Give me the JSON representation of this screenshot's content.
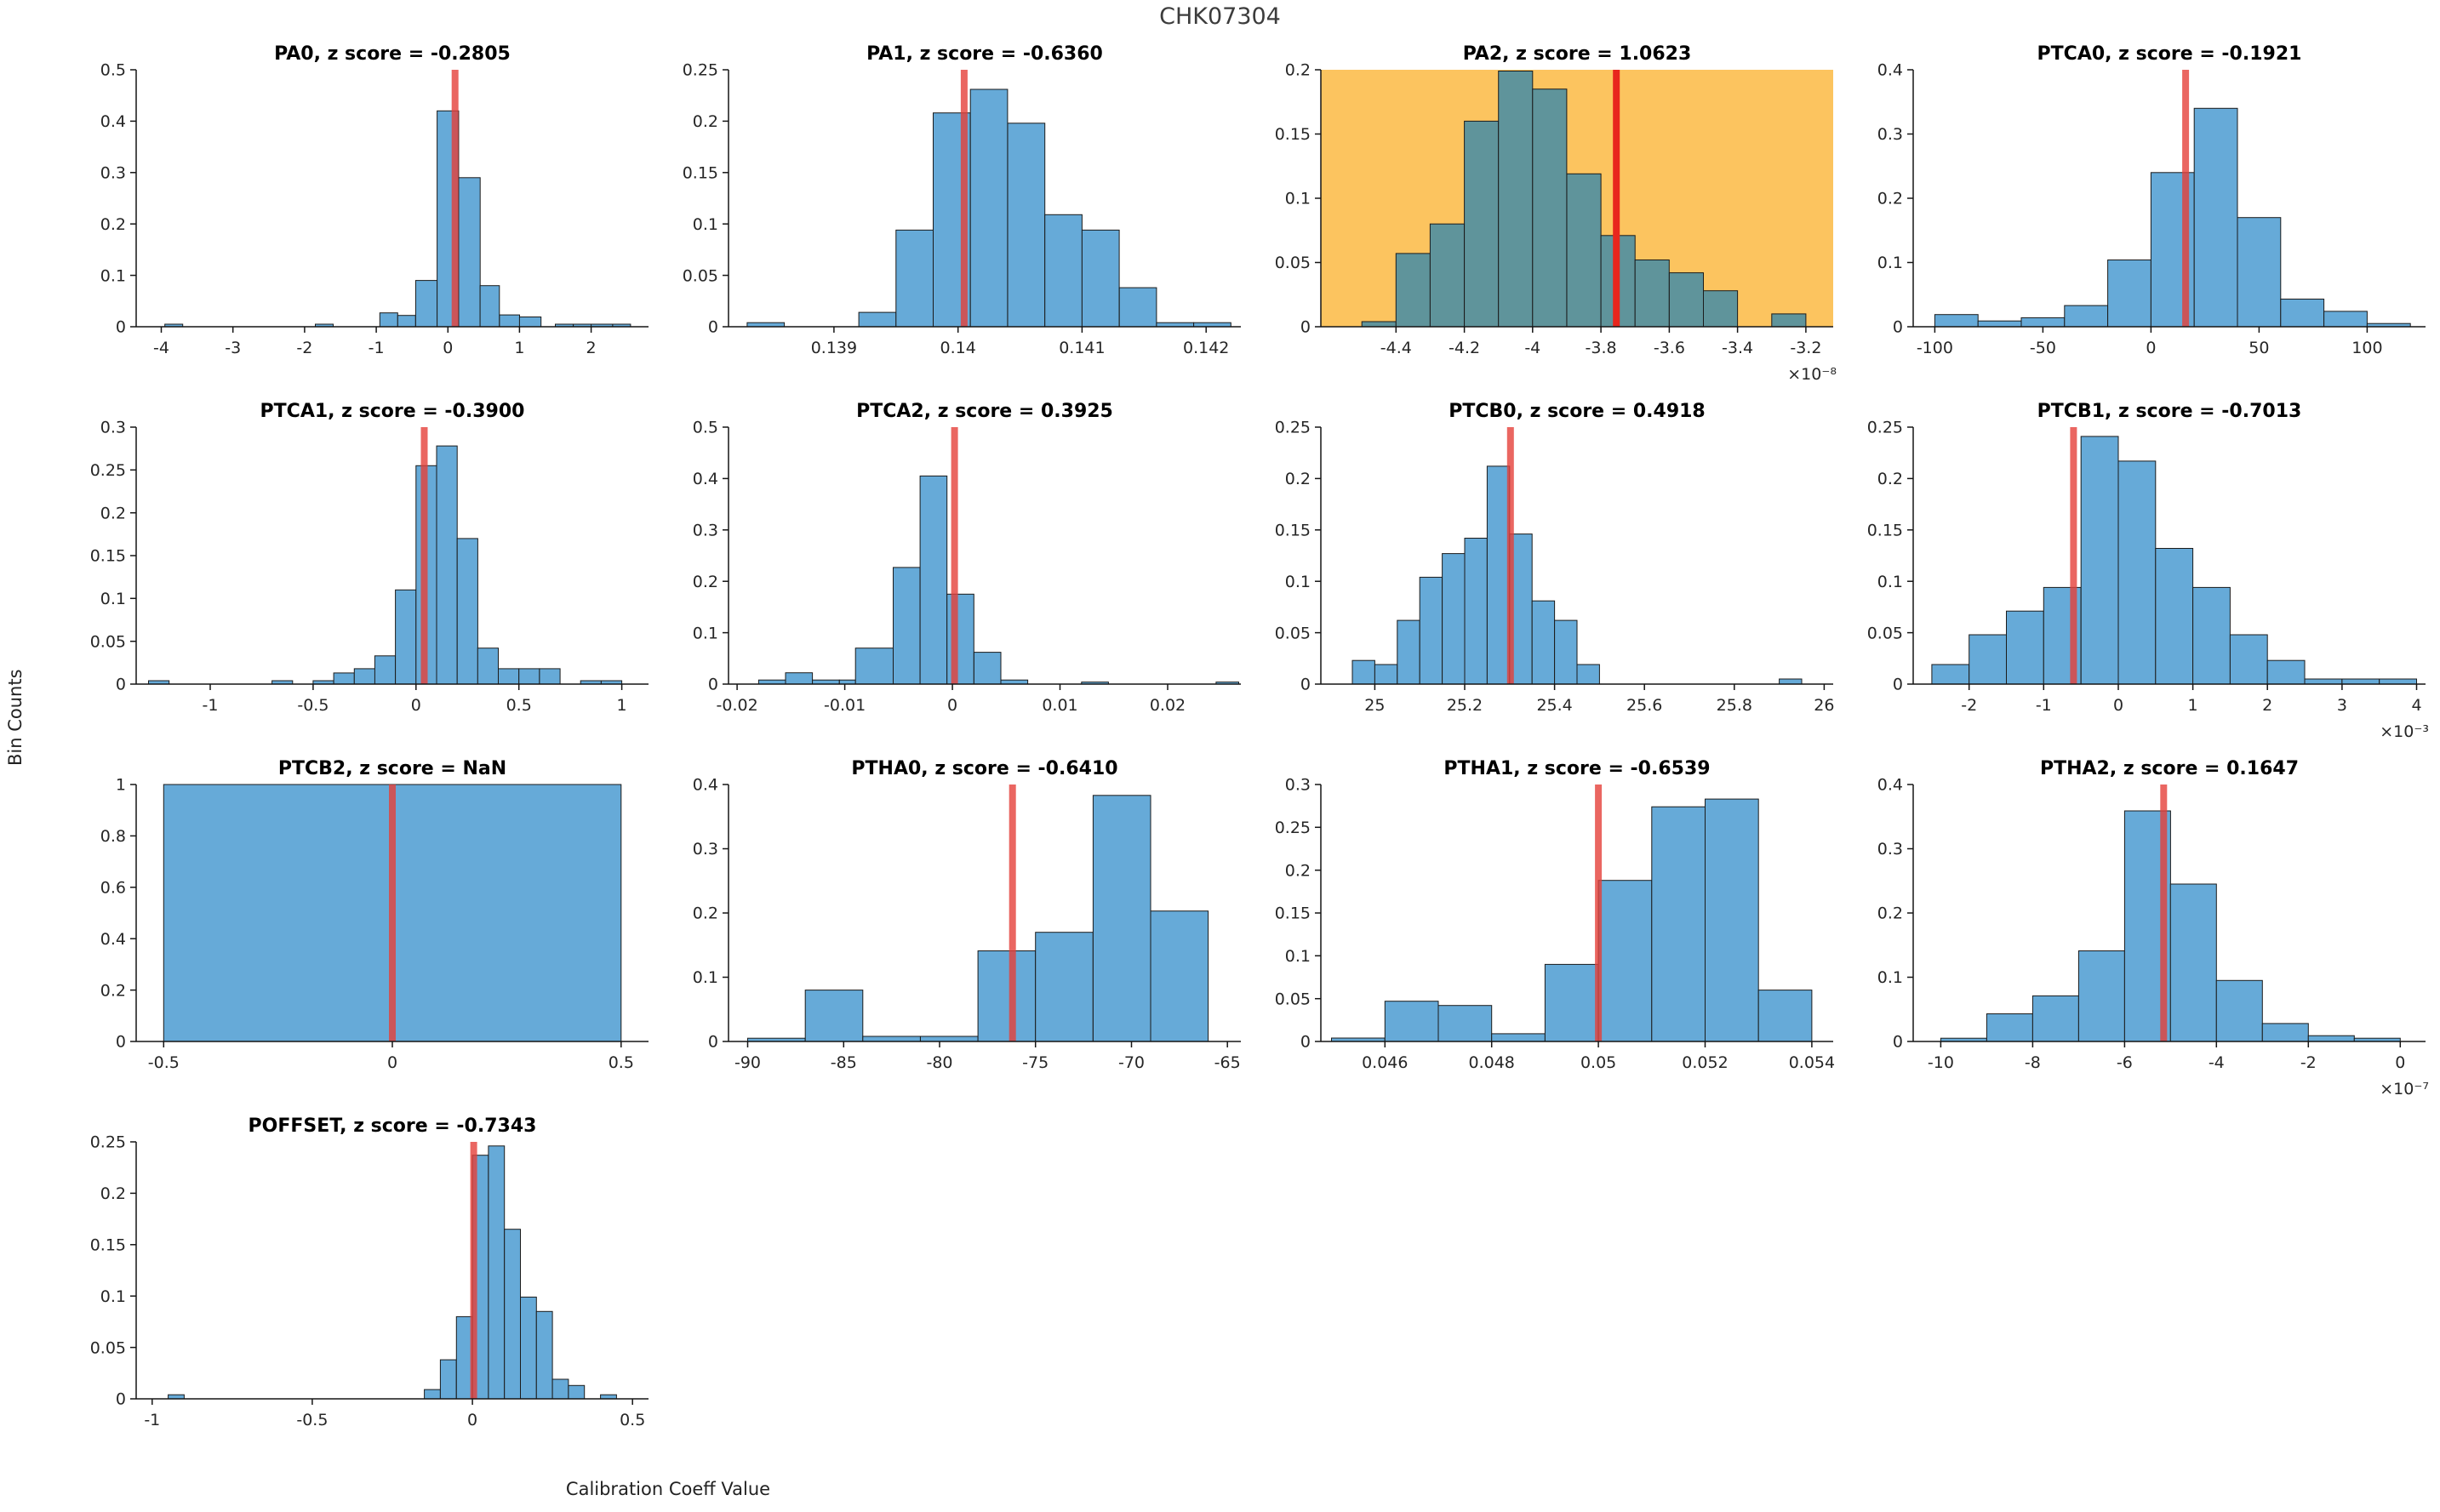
{
  "figure": {
    "title": "CHK07304",
    "xlabel": "Calibration Coeff Value",
    "ylabel": "Bin Counts"
  },
  "colors": {
    "bar_fill": "#66aad8",
    "bar_stroke": "#1b1b1b",
    "bar_fill_highlight": "#5f949b",
    "highlight_bg": "#fcc45f",
    "red_line": "#e5403a",
    "red_line_highlight": "#e8261d",
    "axis": "#151515",
    "tick_label": "#262626",
    "title_text": "#000000"
  },
  "chart_data": [
    {
      "name": "PA0",
      "type": "histogram",
      "title": "PA0, z score = -0.2805",
      "highlighted": false,
      "xlim": [
        -4.35,
        2.8
      ],
      "ylim": [
        0,
        0.5
      ],
      "xticks": [
        -4,
        -3,
        -2,
        -1,
        0,
        1,
        2
      ],
      "yticks": [
        0,
        0.1,
        0.2,
        0.3,
        0.4,
        0.5
      ],
      "x_exponent_label": null,
      "red_line_x": 0.1,
      "bins": [
        [
          -3.95,
          -3.7,
          0.005
        ],
        [
          -1.85,
          -1.6,
          0.005
        ],
        [
          -0.95,
          -0.7,
          0.027
        ],
        [
          -0.7,
          -0.45,
          0.022
        ],
        [
          -0.45,
          -0.15,
          0.09
        ],
        [
          -0.15,
          0.15,
          0.42
        ],
        [
          0.15,
          0.45,
          0.29
        ],
        [
          0.45,
          0.72,
          0.08
        ],
        [
          0.72,
          1.0,
          0.023
        ],
        [
          1.0,
          1.3,
          0.019
        ],
        [
          1.5,
          1.75,
          0.005
        ],
        [
          1.75,
          2.0,
          0.005
        ],
        [
          2.0,
          2.3,
          0.005
        ],
        [
          2.3,
          2.55,
          0.005
        ]
      ]
    },
    {
      "name": "PA1",
      "type": "histogram",
      "title": "PA1, z score = -0.6360",
      "highlighted": false,
      "xlim": [
        0.13815,
        0.14228
      ],
      "ylim": [
        0,
        0.25
      ],
      "xticks": [
        0.139,
        0.14,
        0.141,
        0.142
      ],
      "yticks": [
        0,
        0.05,
        0.1,
        0.15,
        0.2,
        0.25
      ],
      "x_exponent_label": null,
      "red_line_x": 0.14005,
      "bins": [
        [
          0.1383,
          0.1386,
          0.004
        ],
        [
          0.1392,
          0.1395,
          0.014
        ],
        [
          0.1395,
          0.1398,
          0.094
        ],
        [
          0.1398,
          0.1401,
          0.208
        ],
        [
          0.1401,
          0.1404,
          0.231
        ],
        [
          0.1404,
          0.1407,
          0.198
        ],
        [
          0.1407,
          0.141,
          0.109
        ],
        [
          0.141,
          0.1413,
          0.094
        ],
        [
          0.1413,
          0.1416,
          0.038
        ],
        [
          0.1416,
          0.1419,
          0.004
        ],
        [
          0.1419,
          0.1422,
          0.004
        ]
      ]
    },
    {
      "name": "PA2",
      "type": "histogram",
      "title": "PA2, z score = 1.0623",
      "highlighted": true,
      "xlim": [
        -4.62,
        -3.12
      ],
      "ylim": [
        0,
        0.2
      ],
      "xticks": [
        -4.4,
        -4.2,
        -4,
        -3.8,
        -3.6,
        -3.4,
        -3.2
      ],
      "yticks": [
        0,
        0.05,
        0.1,
        0.15,
        0.2
      ],
      "x_exponent_label": "×10⁻⁸",
      "red_line_x": -3.755,
      "bins": [
        [
          -4.5,
          -4.4,
          0.004
        ],
        [
          -4.4,
          -4.3,
          0.057
        ],
        [
          -4.3,
          -4.2,
          0.08
        ],
        [
          -4.2,
          -4.1,
          0.16
        ],
        [
          -4.1,
          -4.0,
          0.199
        ],
        [
          -4.0,
          -3.9,
          0.185
        ],
        [
          -3.9,
          -3.8,
          0.119
        ],
        [
          -3.8,
          -3.7,
          0.071
        ],
        [
          -3.7,
          -3.6,
          0.052
        ],
        [
          -3.6,
          -3.5,
          0.042
        ],
        [
          -3.5,
          -3.4,
          0.028
        ],
        [
          -3.3,
          -3.2,
          0.01
        ]
      ]
    },
    {
      "name": "PTCA0",
      "type": "histogram",
      "title": "PTCA0, z score = -0.1921",
      "highlighted": false,
      "xlim": [
        -110,
        127
      ],
      "ylim": [
        0,
        0.4
      ],
      "xticks": [
        -100,
        -50,
        0,
        50,
        100
      ],
      "yticks": [
        0,
        0.1,
        0.2,
        0.3,
        0.4
      ],
      "x_exponent_label": null,
      "red_line_x": 16,
      "bins": [
        [
          -100,
          -80,
          0.019
        ],
        [
          -80,
          -60,
          0.009
        ],
        [
          -60,
          -40,
          0.014
        ],
        [
          -40,
          -20,
          0.033
        ],
        [
          -20,
          0,
          0.104
        ],
        [
          0,
          20,
          0.24
        ],
        [
          20,
          40,
          0.34
        ],
        [
          40,
          60,
          0.17
        ],
        [
          60,
          80,
          0.043
        ],
        [
          80,
          100,
          0.024
        ],
        [
          100,
          120,
          0.005
        ]
      ]
    },
    {
      "name": "PTCA1",
      "type": "histogram",
      "title": "PTCA1, z score = -0.3900",
      "highlighted": false,
      "xlim": [
        -1.36,
        1.13
      ],
      "ylim": [
        0,
        0.3
      ],
      "xticks": [
        -1,
        -0.5,
        0,
        0.5,
        1
      ],
      "yticks": [
        0,
        0.05,
        0.1,
        0.15,
        0.2,
        0.25,
        0.3
      ],
      "x_exponent_label": null,
      "red_line_x": 0.04,
      "bins": [
        [
          -1.3,
          -1.2,
          0.004
        ],
        [
          -0.7,
          -0.6,
          0.004
        ],
        [
          -0.5,
          -0.4,
          0.004
        ],
        [
          -0.4,
          -0.3,
          0.013
        ],
        [
          -0.3,
          -0.2,
          0.018
        ],
        [
          -0.2,
          -0.1,
          0.033
        ],
        [
          -0.1,
          0,
          0.11
        ],
        [
          0,
          0.1,
          0.255
        ],
        [
          0.1,
          0.2,
          0.278
        ],
        [
          0.2,
          0.3,
          0.17
        ],
        [
          0.3,
          0.4,
          0.042
        ],
        [
          0.4,
          0.5,
          0.018
        ],
        [
          0.5,
          0.6,
          0.018
        ],
        [
          0.6,
          0.7,
          0.018
        ],
        [
          0.8,
          0.9,
          0.004
        ],
        [
          0.9,
          1.0,
          0.004
        ]
      ]
    },
    {
      "name": "PTCA2",
      "type": "histogram",
      "title": "PTCA2, z score = 0.3925",
      "highlighted": false,
      "xlim": [
        -0.0208,
        0.0268
      ],
      "ylim": [
        0,
        0.5
      ],
      "xticks": [
        -0.02,
        -0.01,
        0,
        0.01,
        0.02
      ],
      "yticks": [
        0,
        0.1,
        0.2,
        0.3,
        0.4,
        0.5
      ],
      "x_exponent_label": null,
      "red_line_x": 0.0002,
      "bins": [
        [
          -0.018,
          -0.0155,
          0.008
        ],
        [
          -0.0155,
          -0.013,
          0.022
        ],
        [
          -0.013,
          -0.0105,
          0.008
        ],
        [
          -0.0105,
          -0.009,
          0.008
        ],
        [
          -0.009,
          -0.0055,
          0.07
        ],
        [
          -0.0055,
          -0.003,
          0.227
        ],
        [
          -0.003,
          -0.0005,
          0.405
        ],
        [
          -0.0005,
          0.002,
          0.175
        ],
        [
          0.002,
          0.0045,
          0.062
        ],
        [
          0.0045,
          0.007,
          0.008
        ],
        [
          0.012,
          0.0145,
          0.004
        ],
        [
          0.0245,
          0.0266,
          0.004
        ]
      ]
    },
    {
      "name": "PTCB0",
      "type": "histogram",
      "title": "PTCB0, z score = 0.4918",
      "highlighted": false,
      "xlim": [
        24.88,
        26.02
      ],
      "ylim": [
        0,
        0.25
      ],
      "xticks": [
        25,
        25.2,
        25.4,
        25.6,
        25.8,
        26
      ],
      "yticks": [
        0,
        0.05,
        0.1,
        0.15,
        0.2,
        0.25
      ],
      "x_exponent_label": null,
      "red_line_x": 25.302,
      "bins": [
        [
          24.95,
          25.0,
          0.023
        ],
        [
          25.0,
          25.05,
          0.019
        ],
        [
          25.05,
          25.1,
          0.062
        ],
        [
          25.1,
          25.15,
          0.104
        ],
        [
          25.15,
          25.2,
          0.127
        ],
        [
          25.2,
          25.25,
          0.142
        ],
        [
          25.25,
          25.3,
          0.212
        ],
        [
          25.3,
          25.35,
          0.146
        ],
        [
          25.35,
          25.4,
          0.081
        ],
        [
          25.4,
          25.45,
          0.062
        ],
        [
          25.45,
          25.5,
          0.019
        ],
        [
          25.9,
          25.95,
          0.005
        ]
      ]
    },
    {
      "name": "PTCB1",
      "type": "histogram",
      "title": "PTCB1, z score = -0.7013",
      "highlighted": false,
      "xlim": [
        -2.75,
        4.12
      ],
      "ylim": [
        0,
        0.25
      ],
      "xticks": [
        -2,
        -1,
        0,
        1,
        2,
        3,
        4
      ],
      "yticks": [
        0,
        0.05,
        0.1,
        0.15,
        0.2,
        0.25
      ],
      "x_exponent_label": "×10⁻³",
      "red_line_x": -0.6,
      "bins": [
        [
          -2.5,
          -2,
          0.019
        ],
        [
          -2,
          -1.5,
          0.048
        ],
        [
          -1.5,
          -1,
          0.071
        ],
        [
          -1,
          -0.5,
          0.094
        ],
        [
          -0.5,
          0,
          0.241
        ],
        [
          0,
          0.5,
          0.217
        ],
        [
          0.5,
          1,
          0.132
        ],
        [
          1,
          1.5,
          0.094
        ],
        [
          1.5,
          2,
          0.048
        ],
        [
          2,
          2.5,
          0.023
        ],
        [
          2.5,
          3,
          0.005
        ],
        [
          3,
          3.5,
          0.005
        ],
        [
          3.5,
          4,
          0.005
        ]
      ]
    },
    {
      "name": "PTCB2",
      "type": "histogram",
      "title": "PTCB2, z score = NaN",
      "highlighted": false,
      "xlim": [
        -0.56,
        0.56
      ],
      "ylim": [
        0,
        1
      ],
      "xticks": [
        -0.5,
        0,
        0.5
      ],
      "yticks": [
        0,
        0.2,
        0.4,
        0.6,
        0.8,
        1
      ],
      "x_exponent_label": null,
      "red_line_x": 0,
      "bins": [
        [
          -0.5,
          0.5,
          1
        ]
      ]
    },
    {
      "name": "PTHA0",
      "type": "histogram",
      "title": "PTHA0, z score = -0.6410",
      "highlighted": false,
      "xlim": [
        -91,
        -64.3
      ],
      "ylim": [
        0,
        0.4
      ],
      "xticks": [
        -90,
        -85,
        -80,
        -75,
        -70,
        -65
      ],
      "yticks": [
        0,
        0.1,
        0.2,
        0.3,
        0.4
      ],
      "x_exponent_label": null,
      "red_line_x": -76.2,
      "bins": [
        [
          -90,
          -87,
          0.005
        ],
        [
          -87,
          -84,
          0.08
        ],
        [
          -84,
          -81,
          0.008
        ],
        [
          -81,
          -78,
          0.008
        ],
        [
          -78,
          -75,
          0.141
        ],
        [
          -75,
          -72,
          0.17
        ],
        [
          -72,
          -69,
          0.383
        ],
        [
          -69,
          -66,
          0.203
        ]
      ]
    },
    {
      "name": "PTHA1",
      "type": "histogram",
      "title": "PTHA1, z score = -0.6539",
      "highlighted": false,
      "xlim": [
        0.0448,
        0.0544
      ],
      "ylim": [
        0,
        0.3
      ],
      "xticks": [
        0.046,
        0.048,
        0.05,
        0.052,
        0.054
      ],
      "yticks": [
        0,
        0.05,
        0.1,
        0.15,
        0.2,
        0.25,
        0.3
      ],
      "x_exponent_label": null,
      "red_line_x": 0.05,
      "bins": [
        [
          0.045,
          0.046,
          0.004
        ],
        [
          0.046,
          0.047,
          0.047
        ],
        [
          0.047,
          0.048,
          0.042
        ],
        [
          0.048,
          0.049,
          0.009
        ],
        [
          0.049,
          0.05,
          0.09
        ],
        [
          0.05,
          0.051,
          0.188
        ],
        [
          0.051,
          0.052,
          0.274
        ],
        [
          0.052,
          0.053,
          0.283
        ],
        [
          0.053,
          0.054,
          0.06
        ]
      ]
    },
    {
      "name": "PTHA2",
      "type": "histogram",
      "title": "PTHA2, z score = 0.1647",
      "highlighted": false,
      "xlim": [
        -10.6,
        0.55
      ],
      "ylim": [
        0,
        0.4
      ],
      "xticks": [
        -10,
        -8,
        -6,
        -4,
        -2,
        0
      ],
      "yticks": [
        0,
        0.1,
        0.2,
        0.3,
        0.4
      ],
      "x_exponent_label": "×10⁻⁷",
      "red_line_x": -5.15,
      "bins": [
        [
          -10,
          -9,
          0.005
        ],
        [
          -9,
          -8,
          0.043
        ],
        [
          -8,
          -7,
          0.071
        ],
        [
          -7,
          -6,
          0.141
        ],
        [
          -6,
          -5,
          0.359
        ],
        [
          -5,
          -4,
          0.245
        ],
        [
          -4,
          -3,
          0.095
        ],
        [
          -3,
          -2,
          0.028
        ],
        [
          -2,
          -1,
          0.009
        ],
        [
          -1,
          0,
          0.005
        ]
      ]
    },
    {
      "name": "POFFSET",
      "type": "histogram",
      "title": "POFFSET, z score = -0.7343",
      "highlighted": false,
      "xlim": [
        -1.05,
        0.55
      ],
      "ylim": [
        0,
        0.25
      ],
      "xticks": [
        -1,
        -0.5,
        0,
        0.5
      ],
      "yticks": [
        0,
        0.05,
        0.1,
        0.15,
        0.2,
        0.25
      ],
      "x_exponent_label": null,
      "red_line_x": 0.004,
      "bins": [
        [
          -0.95,
          -0.9,
          0.004
        ],
        [
          -0.15,
          -0.1,
          0.009
        ],
        [
          -0.1,
          -0.05,
          0.038
        ],
        [
          -0.05,
          0,
          0.08
        ],
        [
          0,
          0.05,
          0.237
        ],
        [
          0.05,
          0.1,
          0.246
        ],
        [
          0.1,
          0.15,
          0.165
        ],
        [
          0.15,
          0.2,
          0.099
        ],
        [
          0.2,
          0.25,
          0.085
        ],
        [
          0.25,
          0.3,
          0.019
        ],
        [
          0.3,
          0.35,
          0.013
        ],
        [
          0.4,
          0.45,
          0.004
        ]
      ]
    }
  ]
}
